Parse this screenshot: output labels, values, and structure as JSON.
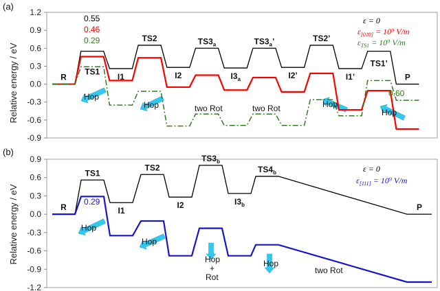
{
  "chart_data": [
    {
      "panel_label": "(a)",
      "type": "line",
      "ylabel": "Relative energy / eV",
      "ylim": [
        -0.9,
        1.2
      ],
      "yticks": [
        "1.2",
        "0.9",
        "0.6",
        "0.3",
        "0.0",
        "-0.3",
        "-0.6",
        "-0.9"
      ],
      "ytick_values": [
        1.2,
        0.9,
        0.6,
        0.3,
        0.0,
        -0.3,
        -0.6,
        -0.9
      ],
      "grid": false,
      "legend_position": "top-right",
      "states": [
        {
          "name": "R",
          "sub": "",
          "prime": "",
          "above": false
        },
        {
          "name": "TS1",
          "sub": "",
          "prime": "",
          "above": false
        },
        {
          "name": "I1",
          "sub": "",
          "prime": "",
          "above": false
        },
        {
          "name": "TS2",
          "sub": "",
          "prime": "",
          "above": true
        },
        {
          "name": "I2",
          "sub": "",
          "prime": "",
          "above": false
        },
        {
          "name": "TS3",
          "sub": "a",
          "prime": "",
          "above": true
        },
        {
          "name": "I3",
          "sub": "a",
          "prime": "",
          "above": false
        },
        {
          "name": "TS3",
          "sub": "a",
          "prime": "’",
          "above": true
        },
        {
          "name": "I2’",
          "sub": "",
          "prime": "",
          "above": false
        },
        {
          "name": "TS2’",
          "sub": "",
          "prime": "",
          "above": true
        },
        {
          "name": "I1’",
          "sub": "",
          "prime": "",
          "above": false
        },
        {
          "name": "TS1’",
          "sub": "",
          "prime": "",
          "above": false
        },
        {
          "name": "P",
          "sub": "",
          "prime": "",
          "above": true
        }
      ],
      "series": [
        {
          "name": "ε = 0",
          "color": "#000000",
          "dash": "solid",
          "values": [
            0.0,
            0.55,
            0.26,
            0.65,
            0.28,
            0.6,
            0.27,
            0.6,
            0.28,
            0.65,
            0.26,
            0.55,
            0.0
          ]
        },
        {
          "name": "ε[0-10] = 10^9 V/m",
          "color": "#ff0000",
          "dash": "solid",
          "values": [
            0.0,
            0.46,
            0.06,
            0.44,
            -0.05,
            0.15,
            -0.1,
            0.11,
            -0.13,
            0.18,
            -0.43,
            -0.11,
            -0.75
          ]
        },
        {
          "name": "εTS1 = 10^9 V/m",
          "color": "#2e7d1e",
          "dash": "dashdot",
          "values": [
            0.0,
            0.29,
            -0.35,
            -0.12,
            -0.7,
            -0.5,
            -0.69,
            -0.5,
            -0.69,
            -0.26,
            -0.53,
            0.06,
            -0.27
          ]
        }
      ],
      "legend": {
        "line1": {
          "text": "ε = 0",
          "color": "#000000"
        },
        "line2": {
          "main": "ε",
          "sub": "[01̄0]",
          "rest": " = 10⁹ V/m",
          "color": "#ff0000"
        },
        "line3": {
          "main": "ε",
          "sub": "TS1",
          "rest": " = 10⁹ V/m",
          "color": "#2e7d1e"
        }
      },
      "annotations": {
        "label_055": {
          "text": "0.55",
          "color": "#000000"
        },
        "label_046": {
          "text": "0.46",
          "color": "#ff0000"
        },
        "label_029": {
          "text": "0.29",
          "color": "#2e7d1e"
        },
        "label_060": {
          "text": "0.60",
          "color": "#2e7d1e"
        },
        "hop1": "Hop",
        "hop2": "Hop",
        "rot1": "two Rot",
        "rot2": "two Rot",
        "hop3": "Hop",
        "hop4": "Hop"
      }
    },
    {
      "panel_label": "(b)",
      "type": "line",
      "ylabel": "Relative energy / eV",
      "ylim": [
        -1.2,
        0.9
      ],
      "yticks": [
        "0.9",
        "0.6",
        "0.3",
        "0.0",
        "-0.3",
        "-0.6",
        "-0.9",
        "-1.2"
      ],
      "ytick_values": [
        0.9,
        0.6,
        0.3,
        0.0,
        -0.3,
        -0.6,
        -0.9,
        -1.2
      ],
      "grid": false,
      "legend_position": "top-right",
      "states": [
        {
          "name": "R",
          "sub": "",
          "prime": "",
          "above": false
        },
        {
          "name": "TS1",
          "sub": "",
          "prime": "",
          "above": true
        },
        {
          "name": "I1",
          "sub": "",
          "prime": "",
          "above": false
        },
        {
          "name": "TS2",
          "sub": "",
          "prime": "",
          "above": true
        },
        {
          "name": "I2",
          "sub": "",
          "prime": "",
          "above": false
        },
        {
          "name": "TS3",
          "sub": "b",
          "prime": "",
          "above": true
        },
        {
          "name": "I3",
          "sub": "b",
          "prime": "",
          "above": false
        },
        {
          "name": "TS4",
          "sub": "b",
          "prime": "",
          "above": true
        },
        {
          "name": "P",
          "sub": "",
          "prime": "",
          "above": true
        }
      ],
      "series": [
        {
          "name": "ε = 0",
          "color": "#000000",
          "dash": "solid",
          "values": [
            0.0,
            0.56,
            0.19,
            0.65,
            0.28,
            0.8,
            0.34,
            0.62,
            0.0
          ]
        },
        {
          "name": "ε[111] = 10^9 V/m",
          "color": "#1515cc",
          "dash": "solid",
          "values": [
            0.0,
            0.29,
            -0.35,
            -0.11,
            -0.68,
            -0.23,
            -0.68,
            -0.5,
            -1.11
          ]
        }
      ],
      "legend": {
        "line1": {
          "text": "ε = 0",
          "color": "#000000"
        },
        "line2": {
          "main": "ε",
          "sub": "[111]",
          "rest": " = 10⁹ V/m",
          "color": "#1515cc"
        }
      },
      "annotations": {
        "label_029": {
          "text": "0.29",
          "color": "#1515cc"
        },
        "hop1": "Hop",
        "hop2": "Hop",
        "hop3_line1": "Hop",
        "hop3_line2": "+",
        "hop3_line3": "Rot",
        "hop4": "Hop",
        "rot": "two Rot"
      }
    }
  ]
}
